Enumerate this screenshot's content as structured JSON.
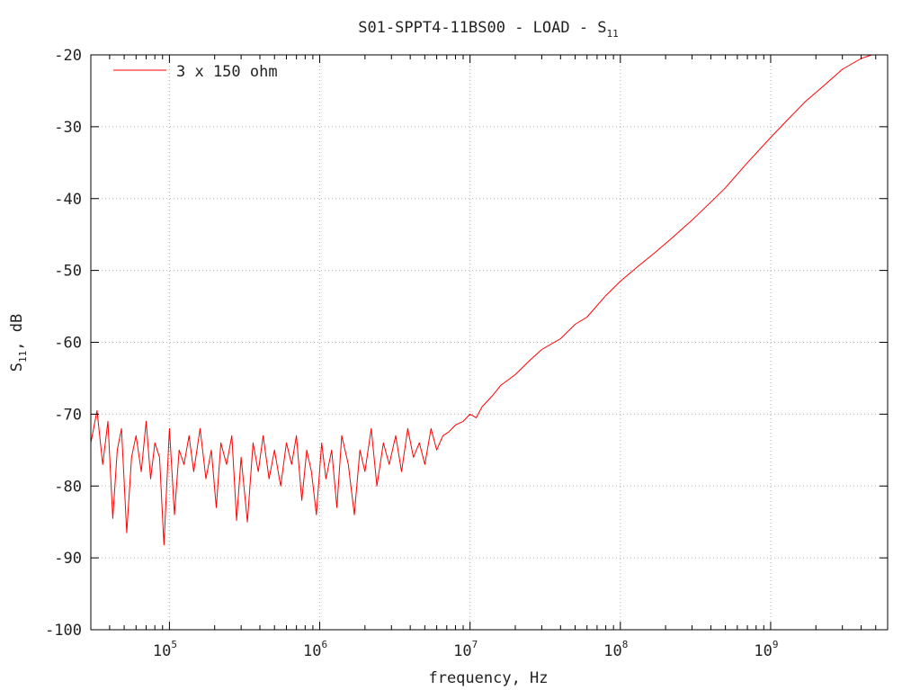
{
  "chart_data": {
    "type": "line",
    "title": "S01-SPPT4-11BS00 - LOAD - S",
    "title_subscript": "11",
    "xlabel": "frequency, Hz",
    "ylabel_main": "S",
    "ylabel_subscript": "11",
    "ylabel_suffix": ", dB",
    "x_scale": "log",
    "xlim": [
      30000,
      6000000000
    ],
    "ylim": [
      -100,
      -20
    ],
    "y_ticks": [
      -20,
      -30,
      -40,
      -50,
      -60,
      -70,
      -80,
      -90,
      -100
    ],
    "y_tick_labels": [
      "-20",
      "-30",
      "-40",
      "-50",
      "-60",
      "-70",
      "-80",
      "-90",
      "-100"
    ],
    "x_ticks": [
      100000,
      1000000,
      10000000,
      100000000,
      1000000000
    ],
    "x_tick_labels": [
      {
        "base": "10",
        "exp": "5"
      },
      {
        "base": "10",
        "exp": "6"
      },
      {
        "base": "10",
        "exp": "7"
      },
      {
        "base": "10",
        "exp": "8"
      },
      {
        "base": "10",
        "exp": "9"
      }
    ],
    "grid": true,
    "legend_position": "top-left",
    "series": [
      {
        "name": "3 x 150 ohm",
        "color": "#ff0000",
        "points": [
          [
            30000,
            -74
          ],
          [
            33000,
            -69.5
          ],
          [
            36000,
            -77
          ],
          [
            39000,
            -71
          ],
          [
            42000,
            -84.5
          ],
          [
            45000,
            -75
          ],
          [
            48000,
            -72
          ],
          [
            52000,
            -86.5
          ],
          [
            56000,
            -76
          ],
          [
            60000,
            -73
          ],
          [
            65000,
            -78
          ],
          [
            70000,
            -71
          ],
          [
            75000,
            -79
          ],
          [
            80000,
            -74
          ],
          [
            86000,
            -76
          ],
          [
            92000,
            -88.2
          ],
          [
            100000,
            -72
          ],
          [
            108000,
            -84
          ],
          [
            116000,
            -75
          ],
          [
            125000,
            -77
          ],
          [
            135000,
            -73
          ],
          [
            145000,
            -78
          ],
          [
            160000,
            -72
          ],
          [
            175000,
            -79
          ],
          [
            190000,
            -75
          ],
          [
            205000,
            -83
          ],
          [
            220000,
            -74
          ],
          [
            240000,
            -77
          ],
          [
            260000,
            -73
          ],
          [
            280000,
            -84.8
          ],
          [
            300000,
            -76
          ],
          [
            330000,
            -85
          ],
          [
            360000,
            -74
          ],
          [
            390000,
            -78
          ],
          [
            420000,
            -73
          ],
          [
            460000,
            -79
          ],
          [
            500000,
            -75
          ],
          [
            550000,
            -80
          ],
          [
            600000,
            -74
          ],
          [
            650000,
            -77
          ],
          [
            700000,
            -73
          ],
          [
            760000,
            -82
          ],
          [
            820000,
            -75
          ],
          [
            880000,
            -78
          ],
          [
            950000,
            -84
          ],
          [
            1030000,
            -74
          ],
          [
            1100000,
            -79
          ],
          [
            1200000,
            -75
          ],
          [
            1300000,
            -83
          ],
          [
            1400000,
            -73
          ],
          [
            1550000,
            -77
          ],
          [
            1700000,
            -84
          ],
          [
            1850000,
            -75
          ],
          [
            2000000,
            -78
          ],
          [
            2200000,
            -72
          ],
          [
            2400000,
            -80
          ],
          [
            2650000,
            -74
          ],
          [
            2900000,
            -77
          ],
          [
            3200000,
            -73
          ],
          [
            3500000,
            -78
          ],
          [
            3850000,
            -72
          ],
          [
            4200000,
            -76
          ],
          [
            4600000,
            -74
          ],
          [
            5000000,
            -77
          ],
          [
            5500000,
            -72
          ],
          [
            6000000,
            -75
          ],
          [
            6600000,
            -73
          ],
          [
            7200000,
            -72.5
          ],
          [
            8000000,
            -71.5
          ],
          [
            9000000,
            -71
          ],
          [
            10000000,
            -70
          ],
          [
            11000000,
            -70.5
          ],
          [
            12000000,
            -69
          ],
          [
            14000000,
            -67.5
          ],
          [
            16000000,
            -66
          ],
          [
            20000000,
            -64.5
          ],
          [
            25000000,
            -62.5
          ],
          [
            30000000,
            -61
          ],
          [
            40000000,
            -59.5
          ],
          [
            50000000,
            -57.5
          ],
          [
            60000000,
            -56.5
          ],
          [
            80000000,
            -53.5
          ],
          [
            100000000,
            -51.5
          ],
          [
            130000000,
            -49.5
          ],
          [
            170000000,
            -47.5
          ],
          [
            220000000,
            -45.5
          ],
          [
            300000000,
            -43
          ],
          [
            400000000,
            -40.5
          ],
          [
            500000000,
            -38.5
          ],
          [
            700000000,
            -35
          ],
          [
            1000000000,
            -31.5
          ],
          [
            1300000000,
            -29
          ],
          [
            1700000000,
            -26.5
          ],
          [
            2200000000,
            -24.5
          ],
          [
            3000000000,
            -22
          ],
          [
            4000000000,
            -20.5
          ],
          [
            4700000000,
            -20
          ]
        ]
      }
    ]
  }
}
